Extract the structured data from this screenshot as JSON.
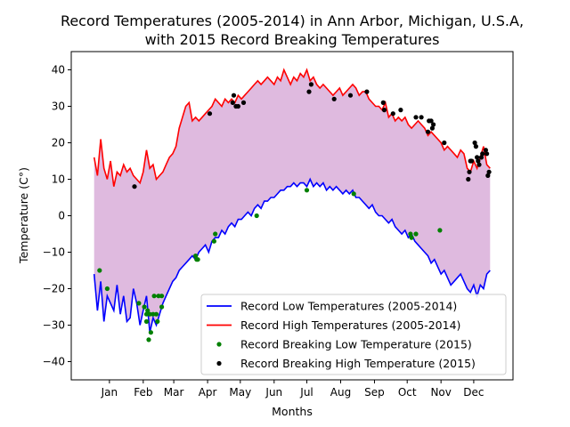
{
  "chart_data": {
    "type": "line",
    "title_line1": "Record Temperatures (2005-2014) in Ann Arbor, Michigan, U.S.A,",
    "title_line2": "with 2015 Record Breaking Temperatures",
    "xlabel": "Months",
    "ylabel": "Temperature (C°)",
    "xlim": [
      -20,
      385
    ],
    "ylim": [
      -45,
      45
    ],
    "yticks": [
      -40,
      -30,
      -20,
      -10,
      0,
      10,
      20,
      30,
      40
    ],
    "xticks": [
      {
        "pos": 15,
        "label": "Jan"
      },
      {
        "pos": 46,
        "label": "Feb"
      },
      {
        "pos": 74,
        "label": "Mar"
      },
      {
        "pos": 105,
        "label": "Apr"
      },
      {
        "pos": 135,
        "label": "May"
      },
      {
        "pos": 166,
        "label": "Jun"
      },
      {
        "pos": 196,
        "label": "Jul"
      },
      {
        "pos": 227,
        "label": "Aug"
      },
      {
        "pos": 258,
        "label": "Sep"
      },
      {
        "pos": 288,
        "label": "Oct"
      },
      {
        "pos": 319,
        "label": "Nov"
      },
      {
        "pos": 349,
        "label": "Dec"
      }
    ],
    "fill_color": "#dfbadf",
    "series": [
      {
        "name": "Record Low Temperatures (2005-2014)",
        "color": "#0000ff",
        "x": [
          1,
          4,
          7,
          10,
          13,
          16,
          19,
          22,
          25,
          28,
          31,
          34,
          37,
          40,
          43,
          46,
          49,
          52,
          55,
          58,
          61,
          64,
          67,
          70,
          73,
          76,
          79,
          82,
          85,
          88,
          91,
          94,
          97,
          100,
          103,
          106,
          109,
          112,
          115,
          118,
          121,
          124,
          127,
          130,
          133,
          136,
          139,
          142,
          145,
          148,
          151,
          154,
          157,
          160,
          163,
          166,
          169,
          172,
          175,
          178,
          181,
          184,
          187,
          190,
          193,
          196,
          199,
          202,
          205,
          208,
          211,
          214,
          217,
          220,
          223,
          226,
          229,
          232,
          235,
          238,
          241,
          244,
          247,
          250,
          253,
          256,
          259,
          262,
          265,
          268,
          271,
          274,
          277,
          280,
          283,
          286,
          289,
          292,
          295,
          298,
          301,
          304,
          307,
          310,
          313,
          316,
          319,
          322,
          325,
          328,
          331,
          334,
          337,
          340,
          343,
          346,
          349,
          352,
          355,
          358,
          361,
          364
        ],
        "y": [
          -16,
          -26,
          -18,
          -29,
          -22,
          -24,
          -26,
          -19,
          -27,
          -22,
          -29,
          -28,
          -20,
          -24,
          -30,
          -26,
          -22,
          -32,
          -28,
          -30,
          -27,
          -24,
          -22,
          -20,
          -18,
          -17,
          -15,
          -14,
          -13,
          -12,
          -11,
          -12,
          -10,
          -9,
          -8,
          -10,
          -7,
          -6,
          -6,
          -4,
          -5,
          -3,
          -2,
          -3,
          -1,
          -1,
          0,
          1,
          0,
          2,
          3,
          2,
          4,
          4,
          5,
          5,
          6,
          7,
          7,
          8,
          8,
          9,
          8,
          9,
          9,
          8,
          10,
          8,
          9,
          8,
          9,
          7,
          8,
          7,
          8,
          7,
          6,
          7,
          6,
          7,
          5,
          5,
          4,
          3,
          2,
          3,
          1,
          0,
          0,
          -1,
          -2,
          -1,
          -3,
          -4,
          -5,
          -4,
          -6,
          -5,
          -7,
          -8,
          -9,
          -10,
          -11,
          -13,
          -12,
          -14,
          -16,
          -15,
          -17,
          -19,
          -18,
          -17,
          -16,
          -18,
          -20,
          -21,
          -19,
          -22,
          -19,
          -20,
          -16,
          -15
        ]
      },
      {
        "name": "Record High Temperatures (2005-2014)",
        "color": "#ff0000",
        "x": [
          1,
          4,
          7,
          10,
          13,
          16,
          19,
          22,
          25,
          28,
          31,
          34,
          37,
          40,
          43,
          46,
          49,
          52,
          55,
          58,
          61,
          64,
          67,
          70,
          73,
          76,
          79,
          82,
          85,
          88,
          91,
          94,
          97,
          100,
          103,
          106,
          109,
          112,
          115,
          118,
          121,
          124,
          127,
          130,
          133,
          136,
          139,
          142,
          145,
          148,
          151,
          154,
          157,
          160,
          163,
          166,
          169,
          172,
          175,
          178,
          181,
          184,
          187,
          190,
          193,
          196,
          199,
          202,
          205,
          208,
          211,
          214,
          217,
          220,
          223,
          226,
          229,
          232,
          235,
          238,
          241,
          244,
          247,
          250,
          253,
          256,
          259,
          262,
          265,
          268,
          271,
          274,
          277,
          280,
          283,
          286,
          289,
          292,
          295,
          298,
          301,
          304,
          307,
          310,
          313,
          316,
          319,
          322,
          325,
          328,
          331,
          334,
          337,
          340,
          343,
          346,
          349,
          352,
          355,
          358,
          361,
          364
        ],
        "y": [
          16,
          11,
          21,
          13,
          10,
          15,
          8,
          12,
          11,
          14,
          12,
          13,
          11,
          10,
          9,
          12,
          18,
          13,
          14,
          10,
          11,
          12,
          14,
          16,
          17,
          19,
          24,
          27,
          30,
          31,
          26,
          27,
          26,
          27,
          28,
          29,
          30,
          32,
          31,
          30,
          32,
          31,
          32,
          31,
          33,
          32,
          33,
          34,
          35,
          36,
          37,
          36,
          37,
          38,
          37,
          36,
          38,
          37,
          40,
          38,
          36,
          38,
          37,
          39,
          38,
          40,
          37,
          38,
          36,
          35,
          36,
          35,
          34,
          33,
          34,
          35,
          33,
          34,
          35,
          36,
          35,
          33,
          34,
          34,
          32,
          31,
          30,
          30,
          29,
          31,
          27,
          28,
          26,
          27,
          26,
          27,
          25,
          24,
          25,
          26,
          25,
          24,
          22,
          23,
          22,
          21,
          20,
          18,
          19,
          18,
          17,
          16,
          18,
          17,
          13,
          12,
          15,
          13,
          16,
          19,
          14,
          13
        ]
      },
      {
        "name": "Record Breaking Low Temperature (2015)",
        "color": "#008000",
        "points": [
          [
            6,
            -15
          ],
          [
            13,
            -20
          ],
          [
            42,
            -24
          ],
          [
            47,
            -25
          ],
          [
            49,
            -29
          ],
          [
            49,
            -27
          ],
          [
            50,
            -26
          ],
          [
            51,
            -34
          ],
          [
            52,
            -27
          ],
          [
            53,
            -32
          ],
          [
            55,
            -27
          ],
          [
            56,
            -22
          ],
          [
            58,
            -27
          ],
          [
            59,
            -29
          ],
          [
            60,
            -22
          ],
          [
            63,
            -25
          ],
          [
            63,
            -22
          ],
          [
            94,
            -11
          ],
          [
            95,
            -12
          ],
          [
            96,
            -12
          ],
          [
            111,
            -7
          ],
          [
            112,
            -5
          ],
          [
            150,
            0
          ],
          [
            196,
            7
          ],
          [
            239,
            6
          ],
          [
            291,
            -5
          ],
          [
            292,
            -6
          ],
          [
            296,
            -5
          ],
          [
            318,
            -4
          ]
        ]
      },
      {
        "name": "Record Breaking High Temperature (2015)",
        "color": "#000000",
        "points": [
          [
            38,
            8
          ],
          [
            107,
            28
          ],
          [
            128,
            31
          ],
          [
            129,
            33
          ],
          [
            131,
            30
          ],
          [
            133,
            30
          ],
          [
            138,
            31
          ],
          [
            198,
            34
          ],
          [
            200,
            36
          ],
          [
            221,
            32
          ],
          [
            236,
            33
          ],
          [
            251,
            34
          ],
          [
            266,
            31
          ],
          [
            267,
            29
          ],
          [
            275,
            28
          ],
          [
            282,
            29
          ],
          [
            296,
            27
          ],
          [
            301,
            27
          ],
          [
            307,
            23
          ],
          [
            308,
            26
          ],
          [
            310,
            26
          ],
          [
            311,
            24
          ],
          [
            312,
            25
          ],
          [
            322,
            20
          ],
          [
            344,
            10
          ],
          [
            345,
            12
          ],
          [
            346,
            15
          ],
          [
            347,
            15
          ],
          [
            350,
            20
          ],
          [
            351,
            19
          ],
          [
            352,
            16
          ],
          [
            353,
            15
          ],
          [
            354,
            14
          ],
          [
            356,
            16
          ],
          [
            357,
            17
          ],
          [
            360,
            18
          ],
          [
            361,
            17
          ],
          [
            362,
            11
          ],
          [
            363,
            12
          ]
        ]
      }
    ],
    "legend_position": "lower right",
    "grid": false
  }
}
